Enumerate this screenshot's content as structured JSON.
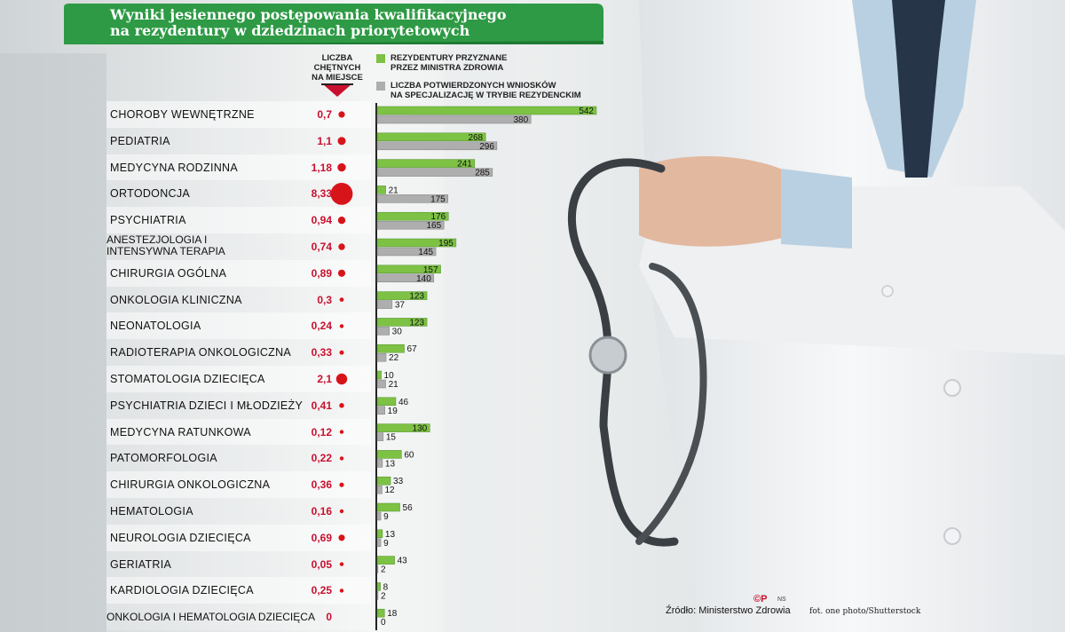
{
  "title": {
    "line1": "Wyniki jesiennego postępowania kwalifikacyjnego",
    "line2": "na rezydentury w dziedzinach priorytetowych"
  },
  "header": {
    "ratio_line1": "LICZBA",
    "ratio_line2": "CHĘTNYCH",
    "ratio_line3": "NA MIEJSCE"
  },
  "legend": {
    "green_line1": "REZYDENTURY PRZYZNANE",
    "green_line2": "PRZEZ MINISTRA ZDROWIA",
    "grey_line1": "LICZBA POTWIERDZONYCH WNIOSKÓW",
    "grey_line2": "NA SPECJALIZACJĘ W TRYBIE REZYDENCKIM",
    "green_color": "#7dc244",
    "grey_color": "#aeaeae",
    "ratio_color": "#d7141a"
  },
  "chart_data": {
    "type": "bar",
    "orientation": "horizontal",
    "categories": [
      "CHOROBY WEWNĘTRZNE",
      "PEDIATRIA",
      "MEDYCYNA RODZINNA",
      "ORTODONCJA",
      "PSYCHIATRIA",
      "ANESTEZJOLOGIA I INTENSYWNA TERAPIA",
      "CHIRURGIA OGÓLNA",
      "ONKOLOGIA KLINICZNA",
      "NEONATOLOGIA",
      "RADIOTERAPIA ONKOLOGICZNA",
      "STOMATOLOGIA DZIECIĘCA",
      "PSYCHIATRIA DZIECI I MŁODZIEŻY",
      "MEDYCYNA RATUNKOWA",
      "PATOMORFOLOGIA",
      "CHIRURGIA ONKOLOGICZNA",
      "HEMATOLOGIA",
      "NEUROLOGIA DZIECIĘCA",
      "GERIATRIA",
      "KARDIOLOGIA DZIECIĘCA",
      "ONKOLOGIA I HEMATOLOGIA DZIECIĘCA"
    ],
    "ratio_labels": [
      "0,7",
      "1,1",
      "1,18",
      "8,33",
      "0,94",
      "0,74",
      "0,89",
      "0,3",
      "0,24",
      "0,33",
      "2,1",
      "0,41",
      "0,12",
      "0,22",
      "0,36",
      "0,16",
      "0,69",
      "0,05",
      "0,25",
      "0"
    ],
    "ratio_values": [
      0.7,
      1.1,
      1.18,
      8.33,
      0.94,
      0.74,
      0.89,
      0.3,
      0.24,
      0.33,
      2.1,
      0.41,
      0.12,
      0.22,
      0.36,
      0.16,
      0.69,
      0.05,
      0.25,
      0
    ],
    "series": [
      {
        "name": "REZYDENTURY PRZYZNANE PRZEZ MINISTRA ZDROWIA",
        "values": [
          542,
          268,
          241,
          21,
          176,
          195,
          157,
          123,
          123,
          67,
          10,
          46,
          130,
          60,
          33,
          56,
          13,
          43,
          8,
          18
        ]
      },
      {
        "name": "LICZBA POTWIERDZONYCH WNIOSKÓW NA SPECJALIZACJĘ W TRYBIE REZYDENCKIM",
        "values": [
          380,
          296,
          285,
          175,
          165,
          145,
          140,
          37,
          30,
          22,
          21,
          19,
          15,
          13,
          12,
          9,
          9,
          2,
          2,
          0
        ]
      }
    ],
    "xlim": [
      0,
      542
    ]
  },
  "footer": {
    "logo": "©P",
    "ns": "NS",
    "source": "Źródło: Ministerstwo Zdrowia",
    "photo": "fot. one photo/Shutterstock"
  }
}
